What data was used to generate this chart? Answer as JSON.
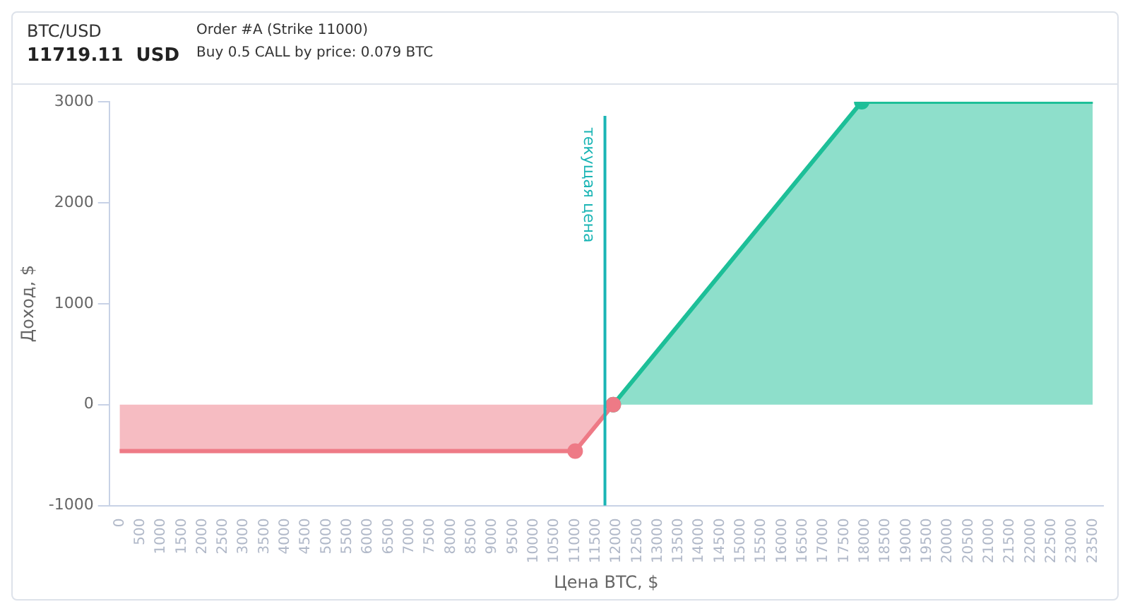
{
  "chart_data": {
    "type": "area",
    "title": "BTC/USD",
    "subtitle": "11719.11  USD",
    "annotations": [
      "Order #A (Strike 11000)",
      "Buy 0.5 CALL by price: 0.079 BTC"
    ],
    "xlabel": "Цена BTC, $",
    "ylabel": "Доход, $",
    "xlim": [
      -250,
      23750
    ],
    "xticks": [
      0,
      500,
      1000,
      1500,
      2000,
      2500,
      3000,
      3500,
      4000,
      4500,
      5000,
      5500,
      6000,
      6500,
      7000,
      7500,
      8000,
      8500,
      9000,
      9500,
      10000,
      10500,
      11000,
      11500,
      12000,
      12500,
      13000,
      13500,
      14000,
      14500,
      15000,
      15500,
      16000,
      16500,
      17000,
      17500,
      18000,
      18500,
      19000,
      19500,
      20000,
      20500,
      21000,
      21500,
      22000,
      22500,
      23000,
      23500
    ],
    "ylim": [
      -1000,
      3000
    ],
    "yticks": [
      -1000,
      0,
      1000,
      2000,
      3000
    ],
    "series": [
      {
        "color": "#ee7a86",
        "x": [
          0,
          11000,
          11920
        ],
        "values": [
          -460,
          -460,
          0
        ]
      },
      {
        "color": "#1dbf98",
        "x": [
          11920,
          17920,
          23500
        ],
        "values": [
          0,
          3000,
          3000
        ]
      }
    ],
    "ref_lines": [
      {
        "axis": "x",
        "value": 11719.11,
        "label": "текущая цена",
        "color": "#1bb5b5"
      }
    ],
    "marker": "circle",
    "grid": false,
    "legend": false
  }
}
